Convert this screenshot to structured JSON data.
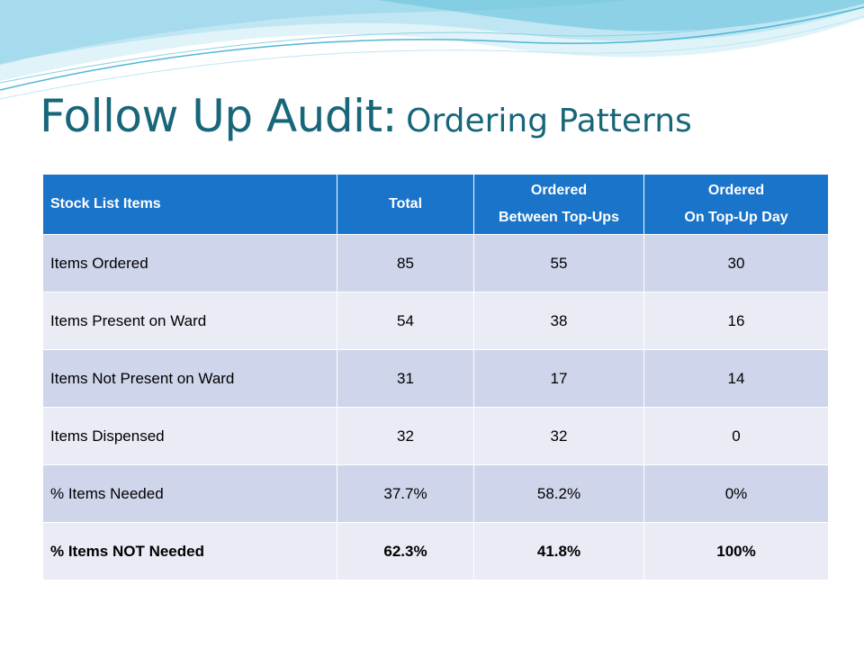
{
  "slide": {
    "title_main": "Follow Up Audit:",
    "title_sub": "Ordering Patterns"
  },
  "table": {
    "headers": [
      {
        "lines": [
          "Stock List Items"
        ]
      },
      {
        "lines": [
          "Total"
        ]
      },
      {
        "lines": [
          "Ordered",
          "Between Top-Ups"
        ]
      },
      {
        "lines": [
          "Ordered",
          "On Top-Up Day"
        ]
      }
    ],
    "rows": [
      [
        "Items Ordered",
        "85",
        "55",
        "30"
      ],
      [
        "Items Present on Ward",
        "54",
        "38",
        "16"
      ],
      [
        "Items Not Present on Ward",
        "31",
        "17",
        "14"
      ],
      [
        "Items Dispensed",
        "32",
        "32",
        "0"
      ],
      [
        "% Items Needed",
        "37.7%",
        "58.2%",
        "0%"
      ],
      [
        "% Items NOT Needed",
        "62.3%",
        "41.8%",
        "100%"
      ]
    ]
  },
  "colors": {
    "title": "#17667a",
    "header_bg": "#1a74c9",
    "row_dark": "#cfd5ea",
    "row_light": "#e9ebf5",
    "wave_light": "#bfe6f2",
    "wave_dark": "#6cc3dd"
  }
}
